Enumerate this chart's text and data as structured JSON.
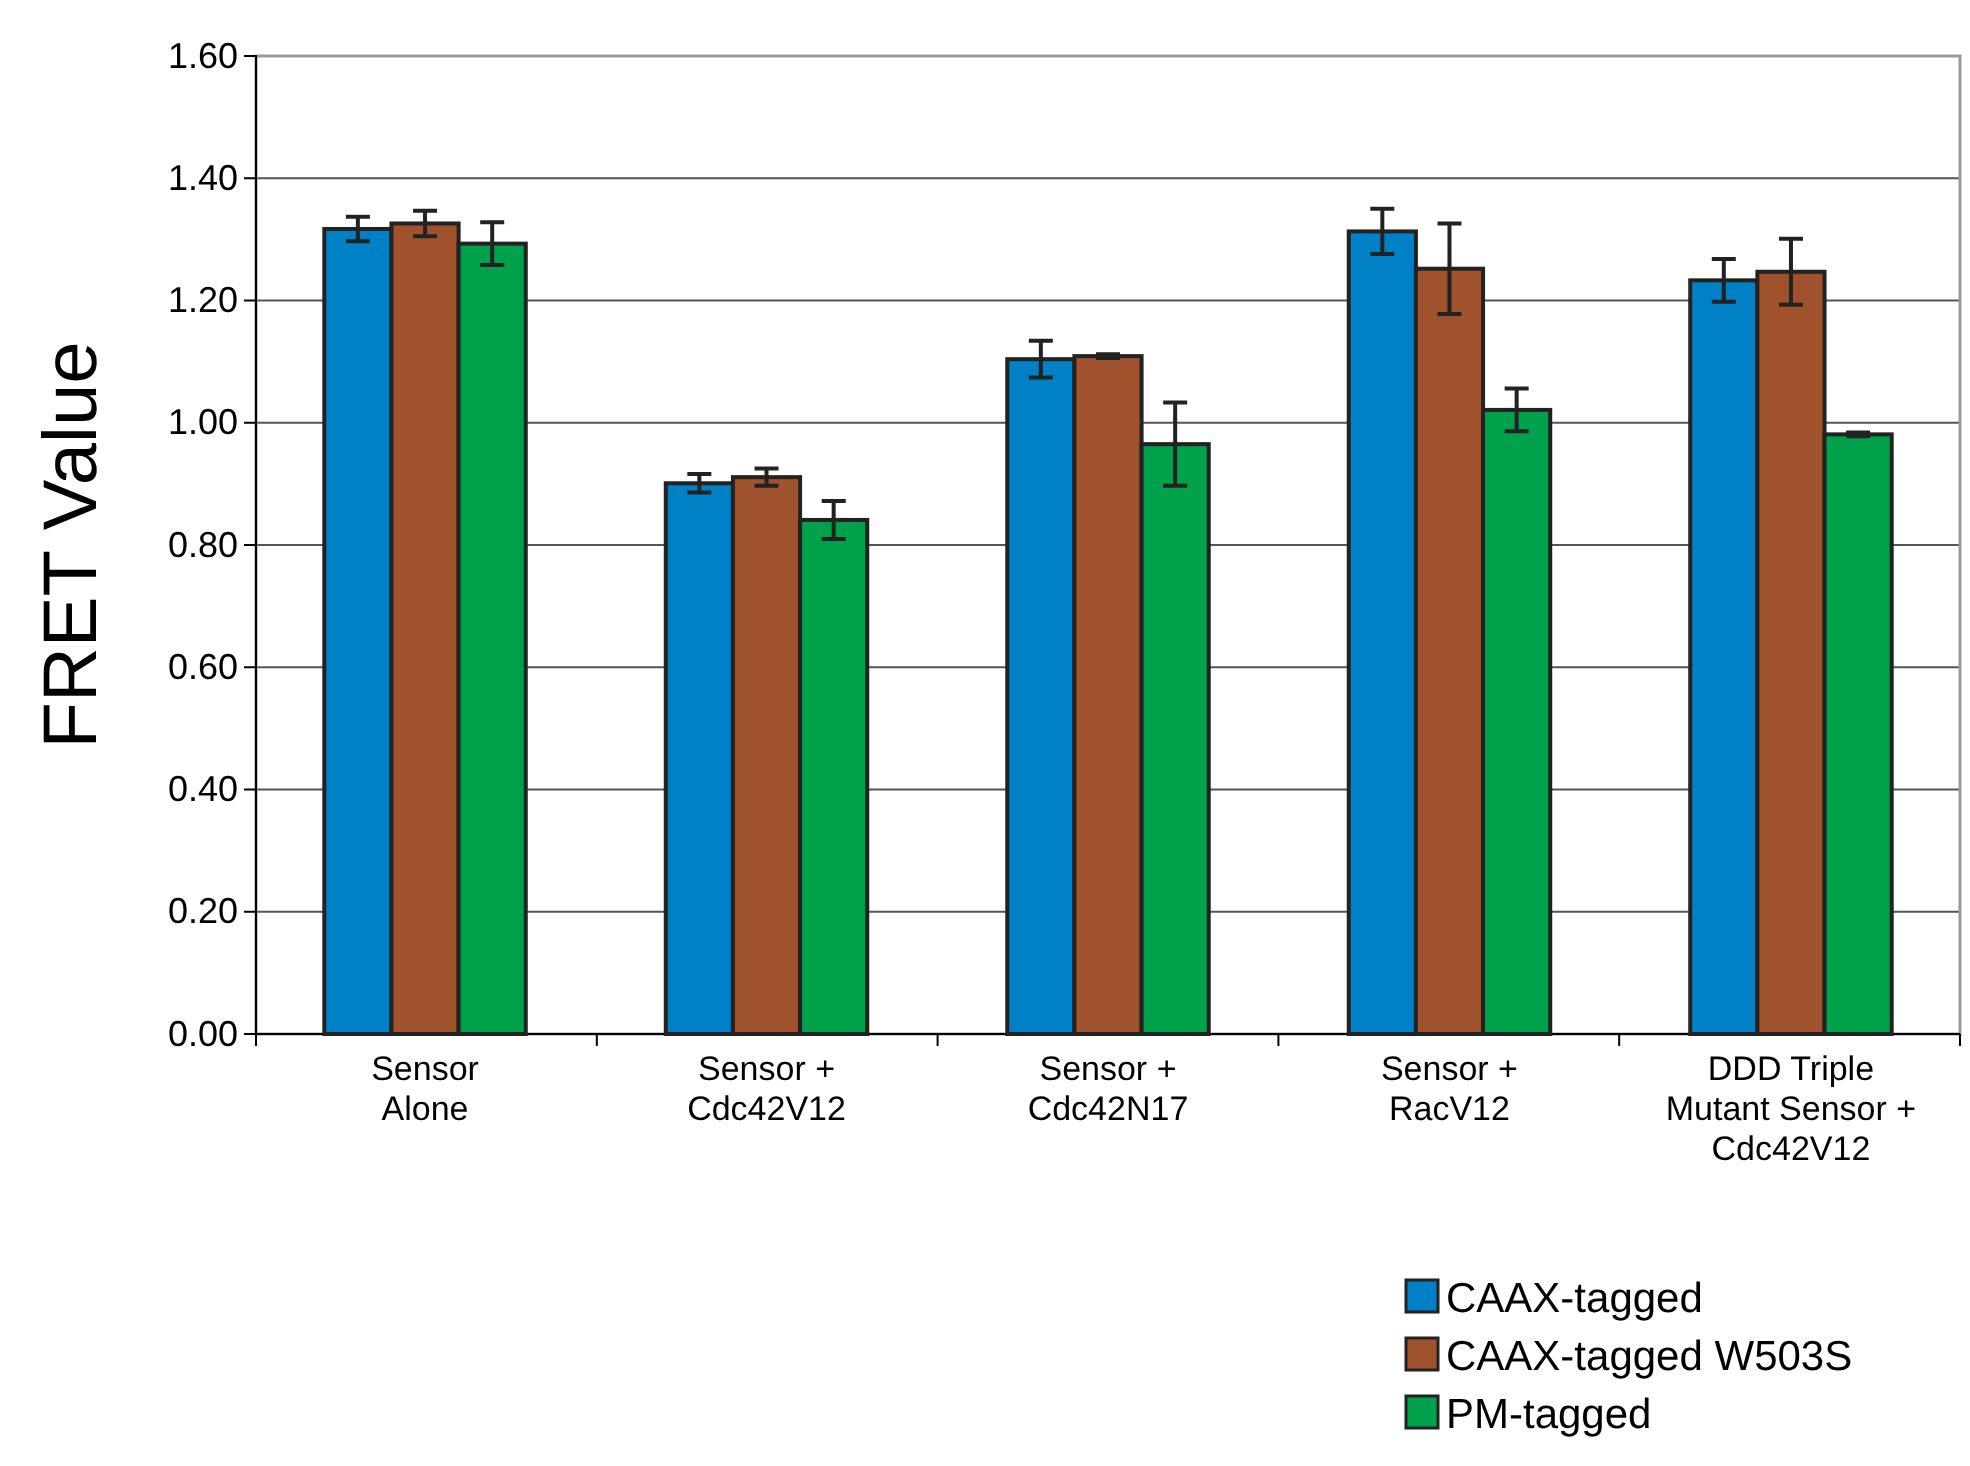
{
  "chart_data": {
    "type": "bar",
    "ylabel": "FRET Value",
    "categories": [
      "Sensor\nAlone",
      "Sensor +\nCdc42V12",
      "Sensor +\nCdc42N17",
      "Sensor +\nRacV12",
      "DDD Triple\nMutant Sensor +\nCdc42V12"
    ],
    "series": [
      {
        "name": "CAAX-tagged",
        "color": "#0080c6",
        "values": [
          1.317,
          0.901,
          1.104,
          1.313,
          1.233
        ],
        "errors": [
          0.02,
          0.015,
          0.03,
          0.037,
          0.035
        ]
      },
      {
        "name": "CAAX-tagged W503S",
        "color": "#a0522d",
        "values": [
          1.326,
          0.911,
          1.109,
          1.252,
          1.247
        ],
        "errors": [
          0.021,
          0.014,
          0.003,
          0.074,
          0.054
        ]
      },
      {
        "name": "PM-tagged",
        "color": "#00a14b",
        "values": [
          1.293,
          0.841,
          0.965,
          1.021,
          0.981
        ],
        "errors": [
          0.035,
          0.031,
          0.068,
          0.035,
          0.003
        ]
      }
    ],
    "ylim": [
      0,
      1.6
    ],
    "yticks": [
      {
        "value": 0,
        "label": "0.00"
      },
      {
        "value": 0.2,
        "label": "0.20"
      },
      {
        "value": 0.4,
        "label": "0.40"
      },
      {
        "value": 0.6,
        "label": "0.60"
      },
      {
        "value": 0.8,
        "label": "0.80"
      },
      {
        "value": 1,
        "label": "1.00"
      },
      {
        "value": 1.2,
        "label": "1.20"
      },
      {
        "value": 1.4,
        "label": "1.40"
      },
      {
        "value": 1.6,
        "label": "1.60"
      }
    ],
    "grid": "y",
    "legend": "bottom right"
  }
}
